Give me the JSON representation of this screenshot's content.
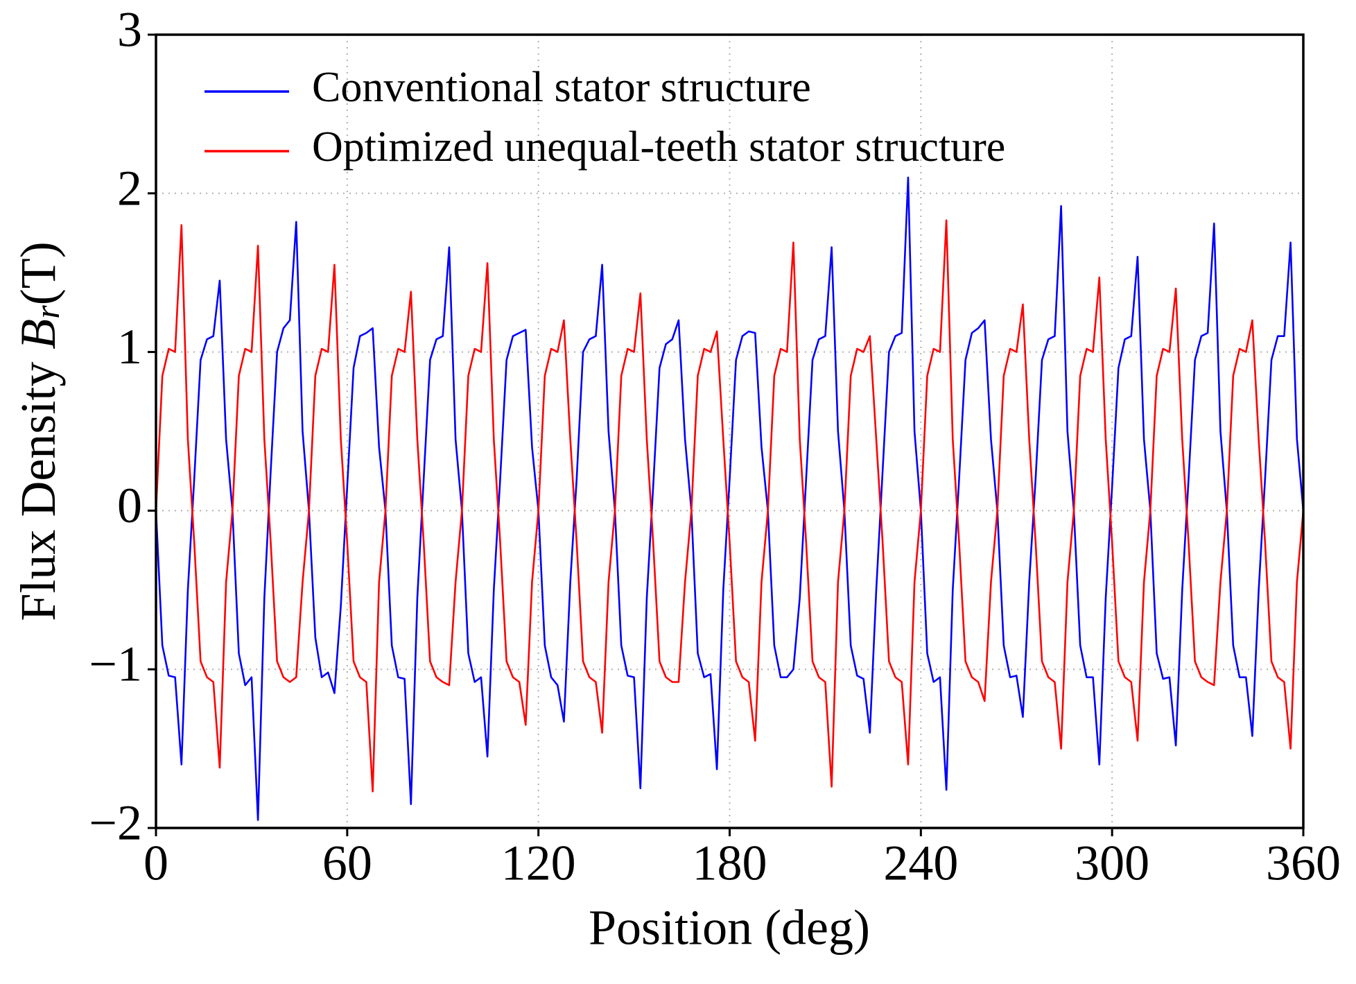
{
  "chart_data": {
    "type": "line",
    "xlabel": "Position (deg)",
    "ylabel": "Flux Density",
    "ylabel_symbol": "B",
    "ylabel_subscript": "r",
    "ylabel_unit": "(T)",
    "xlim": [
      0,
      360
    ],
    "ylim": [
      -2,
      3
    ],
    "xticks": [
      0,
      60,
      120,
      180,
      240,
      300,
      360
    ],
    "yticks": [
      {
        "value": -2,
        "label": "−2"
      },
      {
        "value": -1,
        "label": "−1"
      },
      0,
      1,
      2,
      3
    ],
    "grid": true,
    "legend_position": "upper left",
    "x": [
      0,
      2,
      4,
      6,
      8,
      10,
      12,
      14,
      16,
      18,
      20,
      22,
      24,
      26,
      28,
      30,
      32,
      34,
      36,
      38,
      40,
      42,
      44,
      46,
      48,
      50,
      52,
      54,
      56,
      58,
      60,
      62,
      64,
      66,
      68,
      70,
      72,
      74,
      76,
      78,
      80,
      82,
      84,
      86,
      88,
      90,
      92,
      94,
      96,
      98,
      100,
      102,
      104,
      106,
      108,
      110,
      112,
      114,
      116,
      118,
      120,
      122,
      124,
      126,
      128,
      130,
      132,
      134,
      136,
      138,
      140,
      142,
      144,
      146,
      148,
      150,
      152,
      154,
      156,
      158,
      160,
      162,
      164,
      166,
      168,
      170,
      172,
      174,
      176,
      178,
      180,
      182,
      184,
      186,
      188,
      190,
      192,
      194,
      196,
      198,
      200,
      202,
      204,
      206,
      208,
      210,
      212,
      214,
      216,
      218,
      220,
      222,
      224,
      226,
      228,
      230,
      232,
      234,
      236,
      238,
      240,
      242,
      244,
      246,
      248,
      250,
      252,
      254,
      256,
      258,
      260,
      262,
      264,
      266,
      268,
      270,
      272,
      274,
      276,
      278,
      280,
      282,
      284,
      286,
      288,
      290,
      292,
      294,
      296,
      298,
      300,
      302,
      304,
      306,
      308,
      310,
      312,
      314,
      316,
      318,
      320,
      322,
      324,
      326,
      328,
      330,
      332,
      334,
      336,
      338,
      340,
      342,
      344,
      346,
      348,
      350,
      352,
      354,
      356,
      358,
      360
    ],
    "series": [
      {
        "name": "Conventional stator structure",
        "color": "#0000ff",
        "values": [
          0,
          -0.85,
          -1.04,
          -1.05,
          -1.6,
          -0.5,
          0.2,
          0.95,
          1.08,
          1.1,
          1.45,
          0.45,
          0,
          -0.9,
          -1.1,
          -1.05,
          -1.95,
          -0.55,
          0.25,
          1.0,
          1.15,
          1.2,
          1.82,
          0.5,
          0,
          -0.8,
          -1.05,
          -1.02,
          -1.15,
          -0.6,
          0.15,
          0.9,
          1.1,
          1.12,
          1.15,
          0.4,
          0,
          -0.85,
          -1.05,
          -1.06,
          -1.85,
          -0.55,
          0.2,
          0.95,
          1.08,
          1.1,
          1.66,
          0.45,
          0,
          -0.9,
          -1.08,
          -1.05,
          -1.55,
          -0.5,
          0.2,
          0.95,
          1.1,
          1.12,
          1.14,
          0.4,
          0,
          -0.85,
          -1.05,
          -1.1,
          -1.33,
          -0.45,
          0.2,
          1.0,
          1.08,
          1.1,
          1.55,
          0.5,
          0,
          -0.85,
          -1.04,
          -1.05,
          -1.75,
          -0.55,
          0.15,
          0.9,
          1.05,
          1.08,
          1.2,
          0.45,
          0,
          -0.9,
          -1.05,
          -1.03,
          -1.63,
          -0.5,
          0.2,
          0.95,
          1.1,
          1.13,
          1.12,
          0.4,
          0,
          -0.85,
          -1.05,
          -1.05,
          -1.0,
          -0.55,
          0.2,
          0.95,
          1.08,
          1.1,
          1.66,
          0.5,
          0,
          -0.85,
          -1.04,
          -1.06,
          -1.4,
          -0.5,
          0.25,
          1.0,
          1.1,
          1.12,
          2.1,
          0.5,
          0,
          -0.9,
          -1.08,
          -1.05,
          -1.76,
          -0.5,
          0.2,
          0.95,
          1.12,
          1.15,
          1.2,
          0.45,
          0,
          -0.85,
          -1.05,
          -1.04,
          -1.3,
          -0.45,
          0.2,
          0.95,
          1.08,
          1.1,
          1.92,
          0.5,
          0,
          -0.85,
          -1.05,
          -1.05,
          -1.6,
          -0.55,
          0.15,
          0.9,
          1.08,
          1.1,
          1.6,
          0.45,
          0,
          -0.9,
          -1.06,
          -1.05,
          -1.48,
          -0.5,
          0.2,
          0.95,
          1.1,
          1.12,
          1.81,
          0.5,
          0,
          -0.85,
          -1.05,
          -1.05,
          -1.42,
          -0.5,
          0.2,
          0.95,
          1.1,
          1.1,
          1.69,
          0.45,
          0
        ]
      },
      {
        "name": "Optimized unequal-teeth stator structure",
        "color": "#ff0000",
        "values": [
          0,
          0.85,
          1.02,
          1.0,
          1.8,
          0.45,
          -0.2,
          -0.95,
          -1.05,
          -1.08,
          -1.62,
          -0.45,
          0,
          0.85,
          1.02,
          1.0,
          1.67,
          0.45,
          -0.2,
          -0.95,
          -1.05,
          -1.08,
          -1.05,
          -0.45,
          0,
          0.85,
          1.02,
          1.0,
          1.55,
          0.45,
          -0.2,
          -0.95,
          -1.05,
          -1.08,
          -1.77,
          -0.45,
          0,
          0.85,
          1.02,
          1.0,
          1.38,
          0.45,
          -0.2,
          -0.95,
          -1.05,
          -1.08,
          -1.1,
          -0.45,
          0,
          0.85,
          1.02,
          1.0,
          1.56,
          0.45,
          -0.2,
          -0.95,
          -1.05,
          -1.08,
          -1.35,
          -0.45,
          0,
          0.85,
          1.02,
          1.0,
          1.2,
          0.45,
          -0.2,
          -0.95,
          -1.05,
          -1.08,
          -1.4,
          -0.45,
          0,
          0.85,
          1.02,
          1.0,
          1.37,
          0.45,
          -0.2,
          -0.95,
          -1.05,
          -1.08,
          -1.08,
          -0.45,
          0,
          0.85,
          1.02,
          1.0,
          1.13,
          0.45,
          -0.2,
          -0.95,
          -1.05,
          -1.08,
          -1.45,
          -0.45,
          0,
          0.85,
          1.02,
          1.0,
          1.69,
          0.45,
          -0.2,
          -0.95,
          -1.05,
          -1.08,
          -1.74,
          -0.45,
          0,
          0.85,
          1.02,
          1.0,
          1.1,
          0.45,
          -0.2,
          -0.95,
          -1.05,
          -1.08,
          -1.6,
          -0.45,
          0,
          0.85,
          1.02,
          1.0,
          1.83,
          0.45,
          -0.2,
          -0.95,
          -1.05,
          -1.08,
          -1.2,
          -0.45,
          0,
          0.85,
          1.02,
          1.0,
          1.3,
          0.45,
          -0.2,
          -0.95,
          -1.05,
          -1.08,
          -1.5,
          -0.45,
          0,
          0.85,
          1.02,
          1.0,
          1.47,
          0.45,
          -0.2,
          -0.95,
          -1.05,
          -1.08,
          -1.45,
          -0.45,
          0,
          0.85,
          1.02,
          1.0,
          1.4,
          0.45,
          -0.2,
          -0.95,
          -1.05,
          -1.08,
          -1.1,
          -0.45,
          0,
          0.85,
          1.02,
          1.0,
          1.2,
          0.45,
          -0.2,
          -0.95,
          -1.05,
          -1.08,
          -1.5,
          -0.45,
          0
        ]
      }
    ]
  }
}
